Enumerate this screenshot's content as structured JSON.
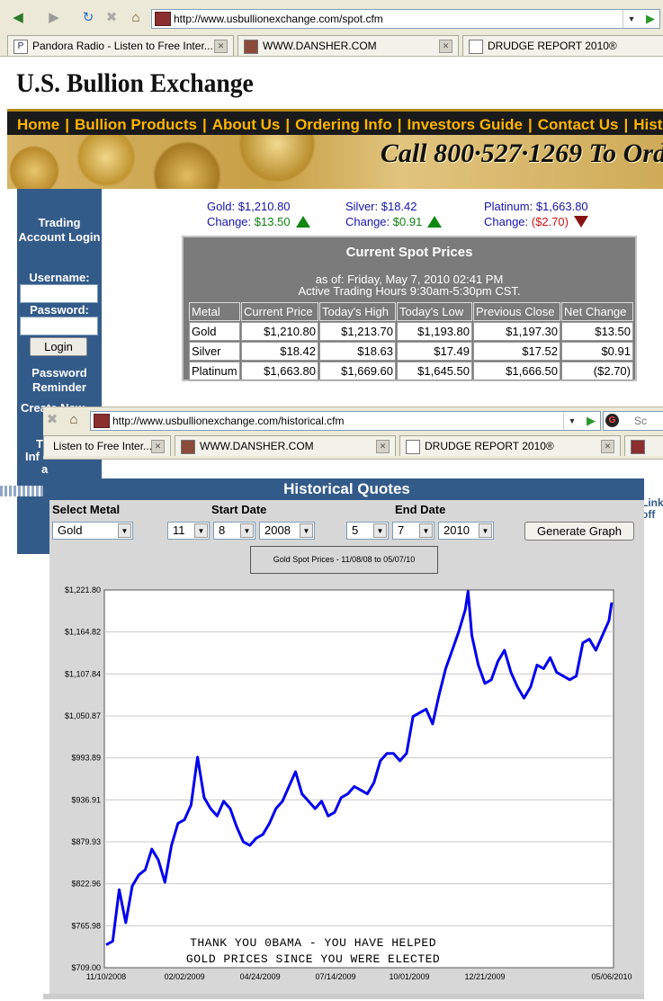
{
  "browser1": {
    "url": "http://www.usbullionexchange.com/spot.cfm",
    "tabs": [
      "Pandora Radio - Listen to Free Inter...",
      "WWW.DANSHER.COM",
      "DRUDGE REPORT 2010®"
    ]
  },
  "site": {
    "logo": "U.S. Bullion Exchange",
    "nav": [
      "Home",
      "Bullion Products",
      "About Us",
      "Ordering Info",
      "Investors Guide",
      "Contact Us",
      "Historical Qu"
    ],
    "banner_text": "Call 800·527·1269 To Ord"
  },
  "sidebar": {
    "title": "Trading Account Login",
    "username_label": "Username:",
    "password_label": "Password:",
    "login_button": "Login",
    "password_reminder": "Password Reminder",
    "create_new": "Create New",
    "peek_t": "T",
    "peek_inf": "Inf",
    "peek_amp": "a"
  },
  "quotes": [
    {
      "label": "Gold:",
      "price": "$1,210.80",
      "change_label": "Change:",
      "change": "$13.50",
      "direction": "up"
    },
    {
      "label": "Silver:",
      "price": "$18.42",
      "change_label": "Change:",
      "change": "$0.91",
      "direction": "up"
    },
    {
      "label": "Platinum:",
      "price": "$1,663.80",
      "change_label": "Change:",
      "change": "($2.70)",
      "direction": "down"
    }
  ],
  "spot": {
    "title": "Current Spot Prices",
    "as_of": "as of: Friday, May 7, 2010 02:41 PM",
    "hours": "Active Trading Hours 9:30am-5:30pm CST.",
    "columns": [
      "Metal",
      "Current Price",
      "Today's High",
      "Today's Low",
      "Previous Close",
      "Net Change"
    ],
    "rows": [
      [
        "Gold",
        "$1,210.80",
        "$1,213.70",
        "$1,193.80",
        "$1,197.30",
        "$13.50"
      ],
      [
        "Silver",
        "$18.42",
        "$18.63",
        "$17.49",
        "$17.52",
        "$0.91"
      ],
      [
        "Platinum",
        "$1,663.80",
        "$1,669.60",
        "$1,645.50",
        "$1,666.50",
        "($2.70)"
      ]
    ]
  },
  "browser2": {
    "url": "http://www.usbullionexchange.com/historical.cfm",
    "tabs": [
      "Listen to Free Inter...",
      "WWW.DANSHER.COM",
      "DRUDGE REPORT 2010®"
    ],
    "search_stub": "Sc"
  },
  "peek_link": "Link\noff",
  "historical": {
    "title": "Historical Quotes",
    "select_metal_label": "Select Metal",
    "start_date_label": "Start Date",
    "end_date_label": "End Date",
    "metal": "Gold",
    "start": {
      "month": "11",
      "day": "8",
      "year": "2008"
    },
    "end": {
      "month": "5",
      "day": "7",
      "year": "2010"
    },
    "generate_button": "Generate Graph",
    "legend": "Gold Spot Prices - 11/08/08 to 05/07/10"
  },
  "chart_data": {
    "type": "line",
    "title": "Gold Spot Prices - 11/08/08 to 05/07/10",
    "xlabel": "",
    "ylabel": "",
    "x_tick_labels": [
      "11/10/2008",
      "02/02/2009",
      "04/24/2009",
      "07/14/2009",
      "10/01/2009",
      "12/21/2009",
      "05/06/2010"
    ],
    "y_tick_labels": [
      "$1,221.80",
      "$1,164.82",
      "$1,107.84",
      "$1,050.87",
      "$993.89",
      "$936.91",
      "$879.93",
      "$822.96",
      "$765.98",
      "$709.00"
    ],
    "ylim": [
      709.0,
      1221.8
    ],
    "grid": true,
    "series_color": "#0000ee",
    "annotation": [
      "THANK YOU 0BAMA - YOU HAVE HELPED",
      "GOLD PRICES SINCE YOU WERE ELECTED"
    ],
    "x": [
      "2008-11-10",
      "2008-11-17",
      "2008-11-24",
      "2008-12-01",
      "2008-12-08",
      "2008-12-15",
      "2008-12-22",
      "2008-12-29",
      "2009-01-05",
      "2009-01-12",
      "2009-01-19",
      "2009-01-26",
      "2009-02-02",
      "2009-02-09",
      "2009-02-16",
      "2009-02-23",
      "2009-03-02",
      "2009-03-09",
      "2009-03-16",
      "2009-03-23",
      "2009-03-30",
      "2009-04-06",
      "2009-04-13",
      "2009-04-20",
      "2009-04-27",
      "2009-05-04",
      "2009-05-11",
      "2009-05-18",
      "2009-05-25",
      "2009-06-01",
      "2009-06-08",
      "2009-06-15",
      "2009-06-22",
      "2009-06-29",
      "2009-07-06",
      "2009-07-13",
      "2009-07-20",
      "2009-07-27",
      "2009-08-03",
      "2009-08-10",
      "2009-08-17",
      "2009-08-24",
      "2009-08-31",
      "2009-09-07",
      "2009-09-14",
      "2009-09-21",
      "2009-09-28",
      "2009-10-05",
      "2009-10-12",
      "2009-10-19",
      "2009-10-26",
      "2009-11-02",
      "2009-11-09",
      "2009-11-16",
      "2009-11-23",
      "2009-11-30",
      "2009-12-03",
      "2009-12-07",
      "2009-12-14",
      "2009-12-21",
      "2009-12-28",
      "2010-01-04",
      "2010-01-11",
      "2010-01-18",
      "2010-01-25",
      "2010-02-01",
      "2010-02-08",
      "2010-02-15",
      "2010-02-22",
      "2010-03-01",
      "2010-03-08",
      "2010-03-15",
      "2010-03-22",
      "2010-03-29",
      "2010-04-05",
      "2010-04-12",
      "2010-04-19",
      "2010-04-26",
      "2010-05-03",
      "2010-05-06"
    ],
    "values": [
      740,
      745,
      815,
      770,
      820,
      835,
      842,
      870,
      855,
      825,
      875,
      905,
      910,
      930,
      995,
      940,
      925,
      915,
      935,
      925,
      900,
      880,
      875,
      885,
      890,
      905,
      925,
      935,
      955,
      975,
      945,
      935,
      925,
      935,
      915,
      920,
      940,
      945,
      955,
      950,
      945,
      960,
      990,
      1000,
      1000,
      990,
      1000,
      1050,
      1055,
      1060,
      1040,
      1080,
      1115,
      1140,
      1165,
      1195,
      1220,
      1160,
      1120,
      1095,
      1100,
      1125,
      1140,
      1110,
      1090,
      1075,
      1090,
      1120,
      1115,
      1130,
      1110,
      1105,
      1100,
      1105,
      1150,
      1155,
      1140,
      1160,
      1180,
      1205
    ]
  }
}
